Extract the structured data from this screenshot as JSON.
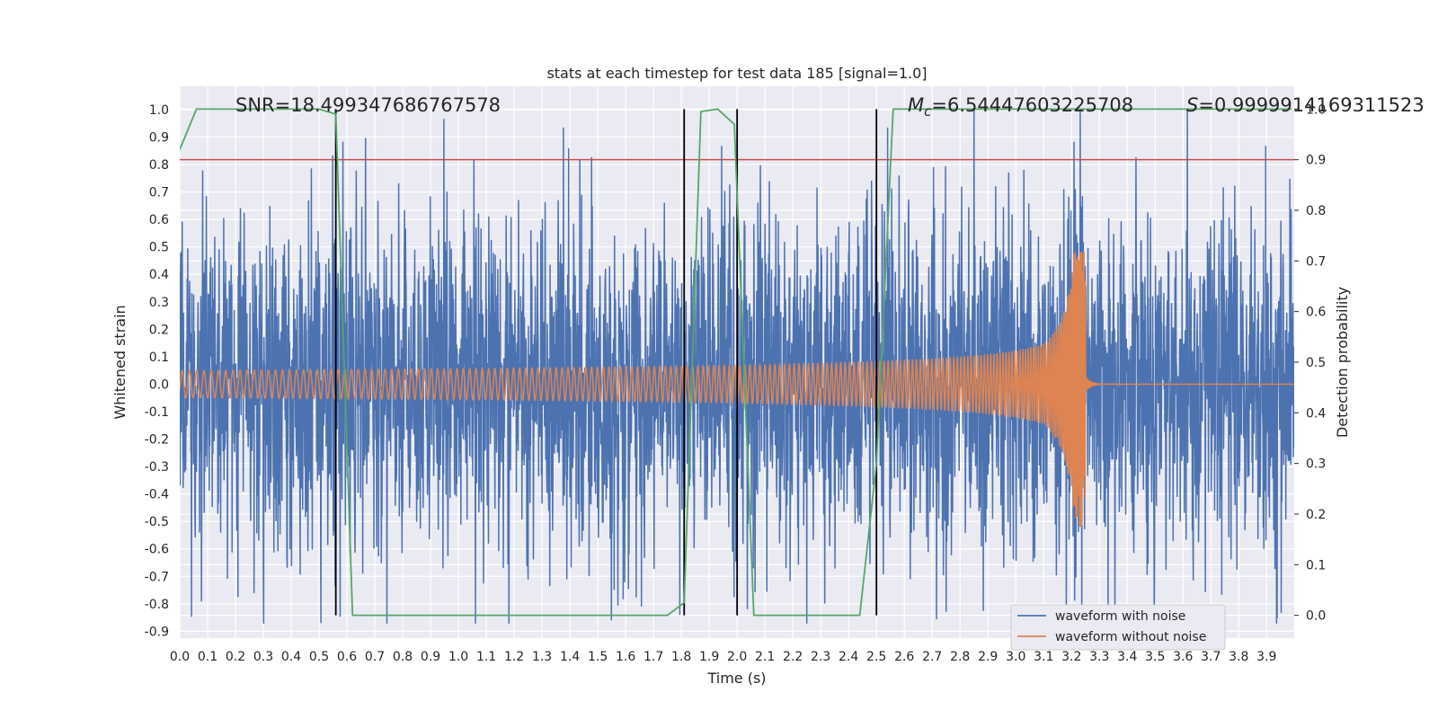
{
  "chart_data": {
    "type": "line",
    "title": "stats at each timestep for test data 185 [signal=1.0]",
    "xlabel": "Time (s)",
    "ylabel": "Whitened strain",
    "y2label": "Detection probability",
    "xlim": [
      0.0,
      3.999
    ],
    "ylim": [
      -0.925,
      1.085
    ],
    "y2lim": [
      -0.045,
      1.045
    ],
    "grid": true,
    "legend_position": "bottom-right",
    "x_ticks": [
      "0.0",
      "0.1",
      "0.2",
      "0.3",
      "0.4",
      "0.5",
      "0.6",
      "0.7",
      "0.8",
      "0.9",
      "1.0",
      "1.1",
      "1.2",
      "1.3",
      "1.4",
      "1.5",
      "1.6",
      "1.7",
      "1.8",
      "1.9",
      "2.0",
      "2.1",
      "2.2",
      "2.3",
      "2.4",
      "2.5",
      "2.6",
      "2.7",
      "2.8",
      "2.9",
      "3.0",
      "3.1",
      "3.2",
      "3.3",
      "3.4",
      "3.5",
      "3.6",
      "3.7",
      "3.8",
      "3.9"
    ],
    "y_ticks": [
      "1.0",
      "0.9",
      "0.8",
      "0.7",
      "0.6",
      "0.5",
      "0.4",
      "0.3",
      "0.2",
      "0.1",
      "0.0",
      "-0.1",
      "-0.2",
      "-0.3",
      "-0.4",
      "-0.5",
      "-0.6",
      "-0.7",
      "-0.8",
      "-0.9"
    ],
    "y2_ticks": [
      "1.0",
      "0.9",
      "0.8",
      "0.7",
      "0.6",
      "0.5",
      "0.4",
      "0.3",
      "0.2",
      "0.1",
      "0.0"
    ],
    "annotations": {
      "snr": "SNR=18.499347686767578",
      "mc_sym": "M",
      "mc_sub": "c",
      "mc_val": "=6.54447603225708",
      "s_sym": "S",
      "s_val": "=0.9999914169311523"
    },
    "threshold": {
      "value": 0.9,
      "axis": "right",
      "color": "#c44e52"
    },
    "vertical_lines": [
      0.56,
      1.81,
      2.0,
      2.5
    ],
    "series": [
      {
        "name": "waveform with noise",
        "color": "#4c72b0",
        "axis": "left",
        "description_values": {
          "noise_std": 0.3,
          "min": -0.87,
          "max": 1.0
        }
      },
      {
        "name": "waveform without noise",
        "color": "#dd8452",
        "axis": "left",
        "chirp": {
          "merger_time": 3.25,
          "peak_amplitude": 0.5,
          "min_amplitude": -0.4,
          "start_amplitude": 0.05
        }
      },
      {
        "name": "detection probability",
        "color": "#55a868",
        "axis": "right",
        "x": [
          0.0,
          0.06,
          0.1,
          0.5,
          0.56,
          0.62,
          1.75,
          1.81,
          1.87,
          1.93,
          1.99,
          2.06,
          2.44,
          2.5,
          2.56,
          3.99
        ],
        "values": [
          0.92,
          1.0,
          1.0,
          1.0,
          0.99,
          0.0,
          0.0,
          0.025,
          0.995,
          1.0,
          0.97,
          0.0,
          0.0,
          0.3,
          1.0,
          1.0
        ]
      }
    ]
  }
}
